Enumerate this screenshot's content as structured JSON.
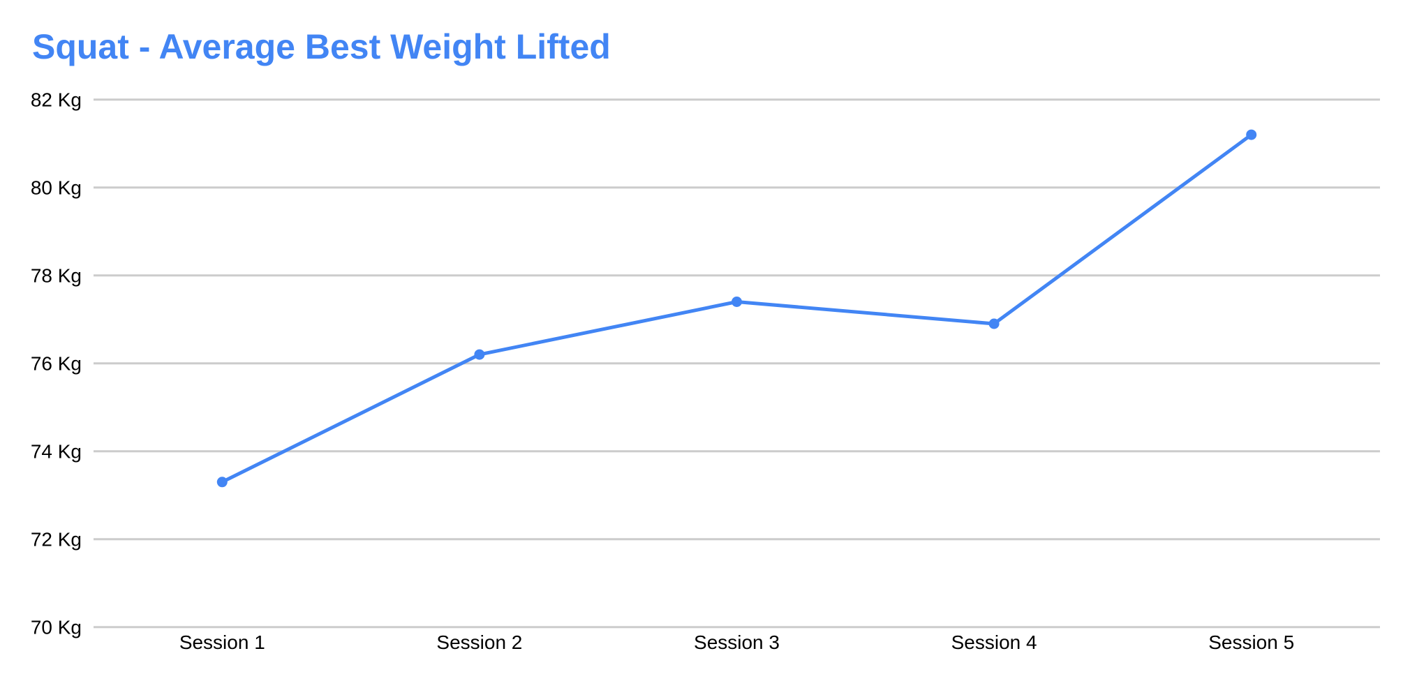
{
  "colors": {
    "title": "#4285f4",
    "series": "#4285f4",
    "grid": "#cccccc",
    "axis": "#000000",
    "bg": "#ffffff"
  },
  "chart_data": {
    "type": "line",
    "title": "Squat - Average Best Weight Lifted",
    "categories": [
      "Session 1",
      "Session 2",
      "Session 3",
      "Session 4",
      "Session 5"
    ],
    "values": [
      73.3,
      76.2,
      77.4,
      76.9,
      81.2
    ],
    "unit": "Kg",
    "yticks": [
      70,
      72,
      74,
      76,
      78,
      80,
      82
    ],
    "ytick_labels": [
      "70 Kg",
      "72 Kg",
      "74 Kg",
      "76 Kg",
      "78 Kg",
      "80 Kg",
      "82 Kg"
    ],
    "ylim": [
      70,
      82
    ],
    "xlabel": "",
    "ylabel": "",
    "grid": true,
    "legend": "none",
    "marker": "circle"
  }
}
